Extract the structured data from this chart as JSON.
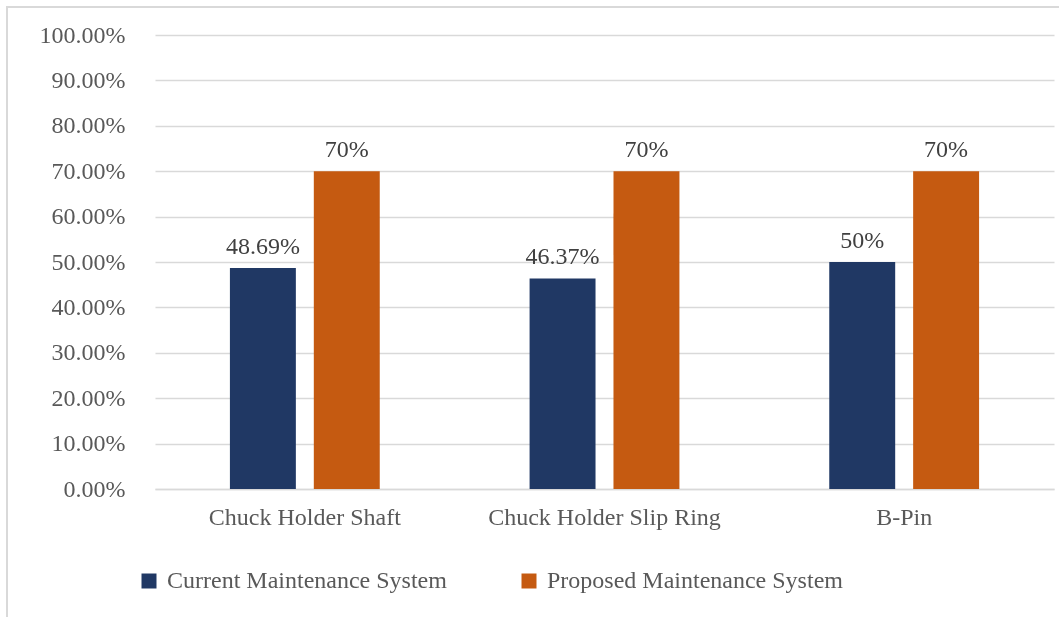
{
  "chart_data": {
    "type": "bar",
    "categories": [
      "Chuck Holder Shaft",
      "Chuck Holder Slip Ring",
      "B-Pin"
    ],
    "series": [
      {
        "name": "Current Maintenance System",
        "color": "#203864",
        "values": [
          48.69,
          46.37,
          50
        ],
        "value_labels": [
          "48.69%",
          "46.37%",
          "50%"
        ]
      },
      {
        "name": "Proposed Maintenance System",
        "color": "#c55a11",
        "values": [
          70,
          70,
          70
        ],
        "value_labels": [
          "70%",
          "70%",
          "70%"
        ]
      }
    ],
    "ylim": [
      0,
      100
    ],
    "yticks": [
      {
        "value": 0,
        "label": "0.00%"
      },
      {
        "value": 10,
        "label": "10.00%"
      },
      {
        "value": 20,
        "label": "20.00%"
      },
      {
        "value": 30,
        "label": "30.00%"
      },
      {
        "value": 40,
        "label": "40.00%"
      },
      {
        "value": 50,
        "label": "50.00%"
      },
      {
        "value": 60,
        "label": "60.00%"
      },
      {
        "value": 70,
        "label": "70.00%"
      },
      {
        "value": 80,
        "label": "80.00%"
      },
      {
        "value": 90,
        "label": "90.00%"
      },
      {
        "value": 100,
        "label": "100.00%"
      }
    ],
    "grid": "y",
    "legend": "bottom"
  }
}
